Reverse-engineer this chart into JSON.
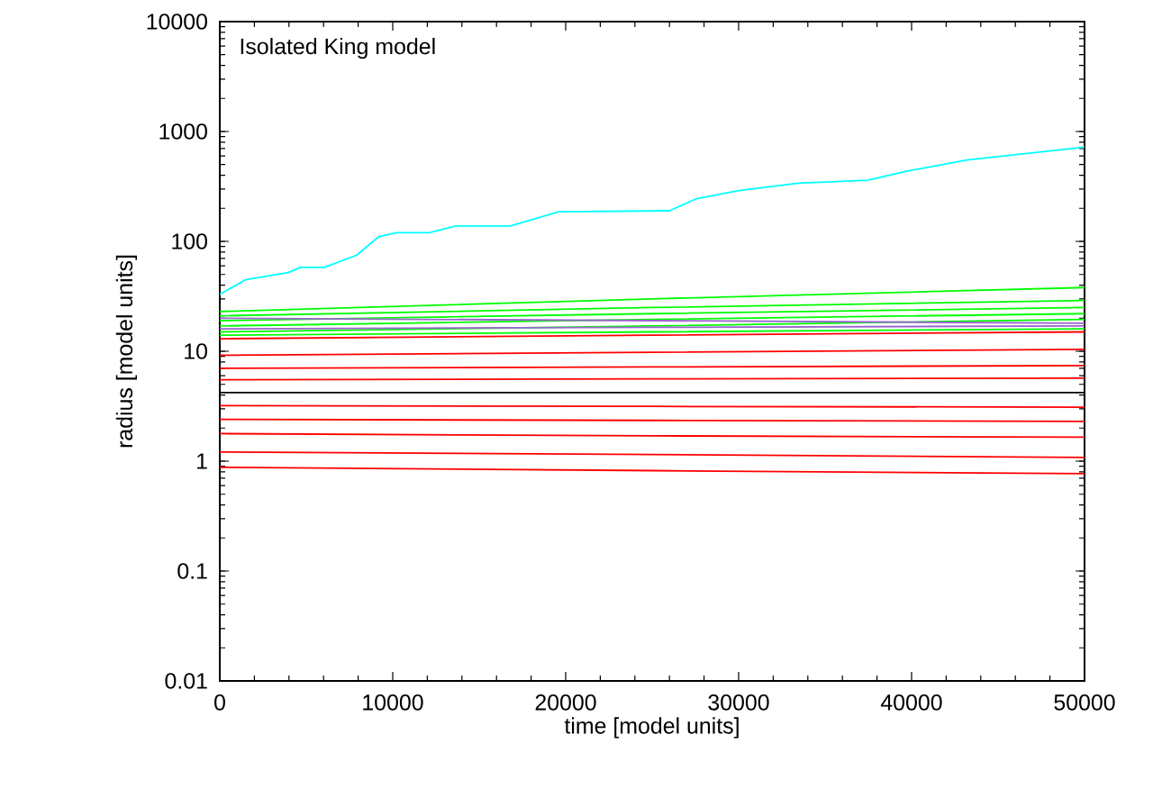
{
  "chart_data": {
    "type": "line",
    "xlabel": "time [model units]",
    "ylabel": "radius [model units]",
    "annotations": [
      "Isolated King model"
    ],
    "log": "y",
    "xlim": [
      0,
      50000
    ],
    "ylim": [
      0.01,
      10000
    ],
    "xticks": [
      0,
      10000,
      20000,
      30000,
      40000,
      50000
    ],
    "yticks": [
      0.01,
      0.1,
      1,
      10,
      100,
      1000,
      10000
    ],
    "marker": "none",
    "line_style": "solid",
    "series": [
      {
        "color": "#00ffff",
        "x": [
          0,
          1530,
          3960,
          4650,
          6040,
          7920,
          9170,
          10200,
          12100,
          13650,
          16800,
          19600,
          26000,
          27570,
          30000,
          33450,
          37470,
          39700,
          43200,
          50000
        ],
        "values": [
          33,
          45,
          52,
          58,
          58,
          75,
          110,
          120,
          120,
          138,
          138,
          186,
          190,
          245,
          290,
          338,
          360,
          435,
          550,
          720
        ]
      },
      {
        "color": "#00ff00",
        "x": [
          0,
          25000,
          50000
        ],
        "values": [
          23,
          30,
          38
        ]
      },
      {
        "color": "#00ff00",
        "x": [
          0,
          25000,
          50000
        ],
        "values": [
          21,
          25,
          29
        ]
      },
      {
        "color": "#00ff00",
        "x": [
          0,
          25000,
          50000
        ],
        "values": [
          19,
          22,
          25
        ]
      },
      {
        "color": "#00ff00",
        "x": [
          0,
          25000,
          50000
        ],
        "values": [
          17,
          19.5,
          22
        ]
      },
      {
        "color": "#00ff00",
        "x": [
          0,
          25000,
          50000
        ],
        "values": [
          15,
          17,
          19.5
        ]
      },
      {
        "color": "#9966cc",
        "x": [
          0,
          25000,
          50000
        ],
        "values": [
          20,
          19,
          18
        ]
      },
      {
        "color": "#9966cc",
        "x": [
          0,
          25000,
          50000
        ],
        "values": [
          16,
          16.5,
          17
        ]
      },
      {
        "color": "#00ff00",
        "x": [
          0,
          25000,
          50000
        ],
        "values": [
          14,
          15,
          16
        ]
      },
      {
        "color": "#ff0000",
        "x": [
          0,
          25000,
          50000
        ],
        "values": [
          13,
          14,
          15
        ]
      },
      {
        "color": "#ff0000",
        "x": [
          0,
          25000,
          50000
        ],
        "values": [
          9.2,
          9.8,
          10.4
        ]
      },
      {
        "color": "#ff0000",
        "x": [
          0,
          25000,
          50000
        ],
        "values": [
          7,
          7.2,
          7.4
        ]
      },
      {
        "color": "#ff0000",
        "x": [
          0,
          25000,
          50000
        ],
        "values": [
          5.5,
          5.6,
          5.7
        ]
      },
      {
        "color": "#000000",
        "x": [
          0,
          25000,
          50000
        ],
        "values": [
          4.2,
          4.2,
          4.2
        ]
      },
      {
        "color": "#ff0000",
        "x": [
          0,
          25000,
          50000
        ],
        "values": [
          3.2,
          3.15,
          3.1
        ]
      },
      {
        "color": "#ff0000",
        "x": [
          0,
          25000,
          50000
        ],
        "values": [
          2.4,
          2.35,
          2.3
        ]
      },
      {
        "color": "#ff0000",
        "x": [
          0,
          25000,
          50000
        ],
        "values": [
          1.78,
          1.7,
          1.65
        ]
      },
      {
        "color": "#ff0000",
        "x": [
          0,
          25000,
          50000
        ],
        "values": [
          1.21,
          1.15,
          1.08
        ]
      },
      {
        "color": "#ff0000",
        "x": [
          0,
          25000,
          50000
        ],
        "values": [
          0.88,
          0.82,
          0.77
        ]
      }
    ]
  }
}
